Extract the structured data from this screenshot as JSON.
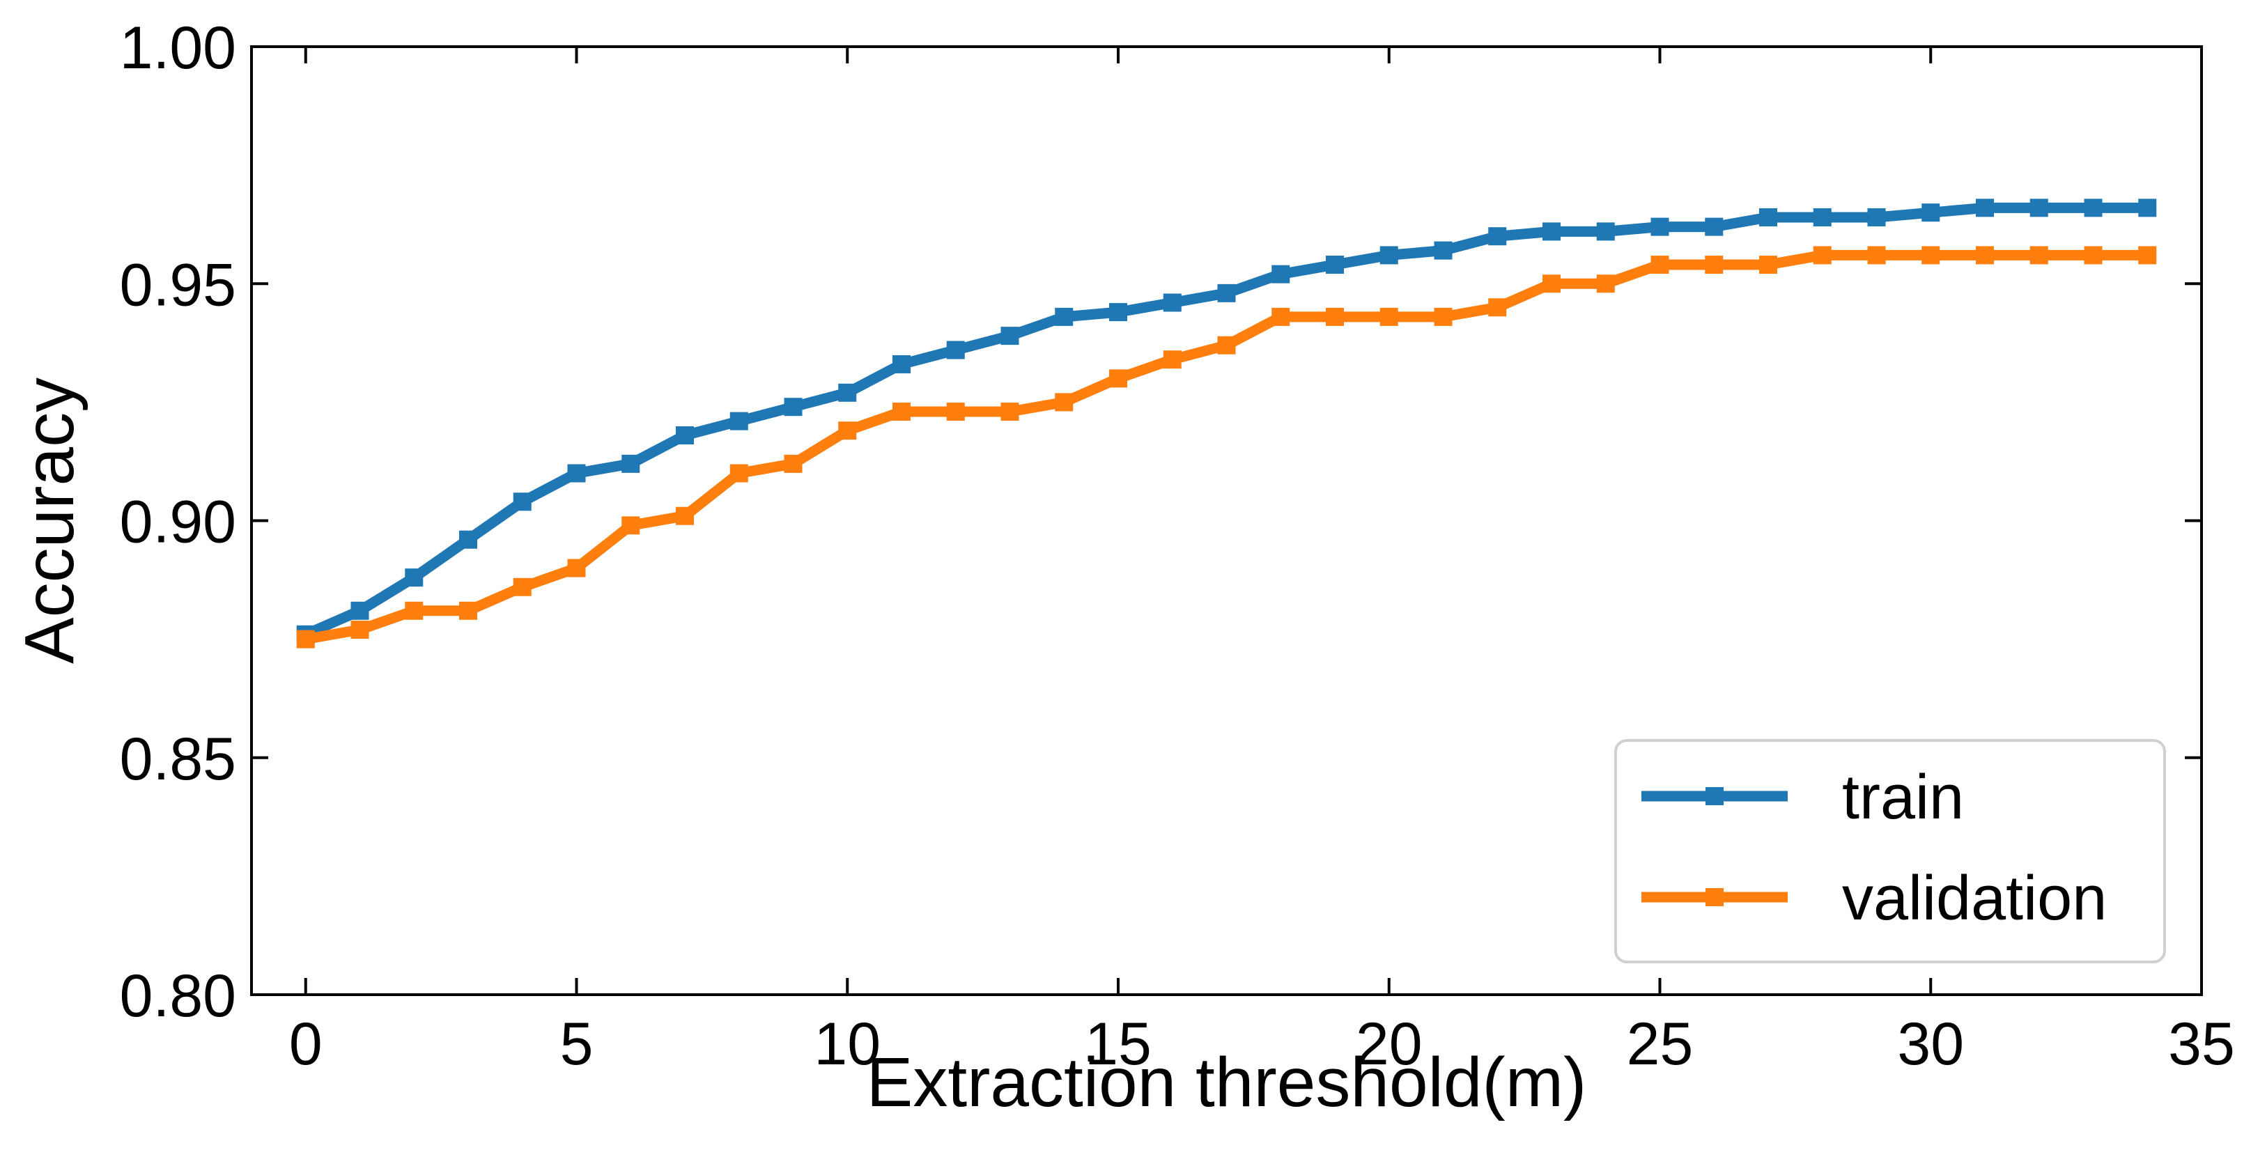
{
  "chart_data": {
    "type": "line",
    "title": "",
    "xlabel": "Extraction threshold(m)",
    "ylabel": "Accuracy",
    "xlim": [
      -1,
      35
    ],
    "ylim": [
      0.8,
      1.0
    ],
    "xticks": [
      0,
      5,
      10,
      15,
      20,
      25,
      30,
      35
    ],
    "xtick_labels": [
      "0",
      "5",
      "10",
      "15",
      "20",
      "25",
      "30",
      "35"
    ],
    "yticks": [
      0.8,
      0.85,
      0.9,
      0.95,
      1.0
    ],
    "ytick_labels": [
      "0.80",
      "0.85",
      "0.90",
      "0.95",
      "1.00"
    ],
    "grid": false,
    "legend": {
      "position": "lower-right"
    },
    "x": [
      0,
      1,
      2,
      3,
      4,
      5,
      6,
      7,
      8,
      9,
      10,
      11,
      12,
      13,
      14,
      15,
      16,
      17,
      18,
      19,
      20,
      21,
      22,
      23,
      24,
      25,
      26,
      27,
      28,
      29,
      30,
      31,
      32,
      33,
      34
    ],
    "series": [
      {
        "name": "train",
        "color": "#1f77b4",
        "marker": "square",
        "values": [
          0.876,
          0.881,
          0.888,
          0.896,
          0.904,
          0.91,
          0.912,
          0.918,
          0.921,
          0.924,
          0.927,
          0.933,
          0.936,
          0.939,
          0.943,
          0.944,
          0.946,
          0.948,
          0.952,
          0.954,
          0.956,
          0.957,
          0.96,
          0.961,
          0.961,
          0.962,
          0.962,
          0.964,
          0.964,
          0.964,
          0.965,
          0.966,
          0.966,
          0.966,
          0.966
        ]
      },
      {
        "name": "validation",
        "color": "#ff7f0e",
        "marker": "square",
        "values": [
          0.875,
          0.877,
          0.881,
          0.881,
          0.886,
          0.89,
          0.899,
          0.901,
          0.91,
          0.912,
          0.919,
          0.923,
          0.923,
          0.923,
          0.925,
          0.93,
          0.934,
          0.937,
          0.943,
          0.943,
          0.943,
          0.943,
          0.945,
          0.95,
          0.95,
          0.954,
          0.954,
          0.954,
          0.956,
          0.956,
          0.956,
          0.956,
          0.956,
          0.956,
          0.956
        ]
      }
    ]
  }
}
